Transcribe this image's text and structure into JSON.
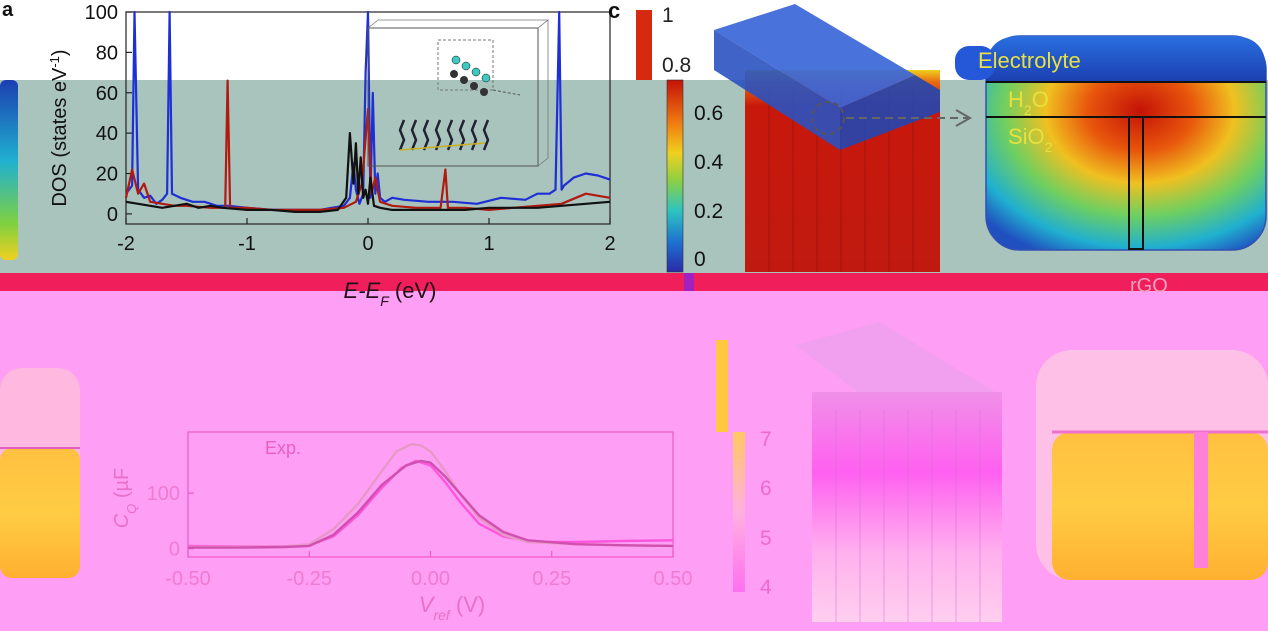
{
  "figure": {
    "panel_a": {
      "letter": "a",
      "x_label": "E-E",
      "x_label_sub": "F",
      "x_label_unit": " (eV)",
      "y_label_main": "DOS (states eV",
      "y_label_sup": "-1",
      "y_label_close": ")"
    },
    "panel_b": {
      "exp_label": "Exp.",
      "x_label": "V",
      "x_label_sub": "ref",
      "x_label_unit": " (V)",
      "y_label": "C",
      "y_label_sub": "Q",
      "y_label_unit": " (µF"
    },
    "panel_c": {
      "letter": "c",
      "colorbar_ticks": [
        "1",
        "0.8",
        "0.6",
        "0.4",
        "0.2",
        "0"
      ],
      "layer_electrolyte": "Electrolyte",
      "layer_h2o": "H",
      "layer_h2o_sub": "2",
      "layer_h2o_end": "O",
      "layer_sio2": "SiO",
      "layer_sio2_sub": "2",
      "material_label": "rGO"
    },
    "panel_d": {
      "colorbar_ticks": [
        "7",
        "6",
        "5",
        "4"
      ]
    }
  },
  "chart_data": [
    {
      "type": "line",
      "panel": "a",
      "xlabel": "E-E_F (eV)",
      "ylabel": "DOS (states eV^-1)",
      "xlim": [
        -2,
        2
      ],
      "ylim": [
        -5,
        100
      ],
      "x_ticks": [
        "-2",
        "-1",
        "0",
        "1",
        "2"
      ],
      "y_ticks": [
        "0",
        "20",
        "40",
        "60",
        "80",
        "100"
      ],
      "series": [
        {
          "color": "#1f2fd6",
          "x": [
            -2.0,
            -1.95,
            -1.93,
            -1.9,
            -1.85,
            -1.8,
            -1.75,
            -1.7,
            -1.66,
            -1.64,
            -1.62,
            -1.55,
            -1.45,
            -1.35,
            -1.25,
            -1.15,
            -1.0,
            -0.8,
            -0.6,
            -0.4,
            -0.3,
            -0.2,
            -0.15,
            -0.12,
            -0.1,
            -0.07,
            -0.04,
            -0.02,
            0.0,
            0.02,
            0.04,
            0.06,
            0.08,
            0.1,
            0.14,
            0.2,
            0.3,
            0.5,
            0.7,
            0.9,
            1.1,
            1.3,
            1.4,
            1.5,
            1.55,
            1.58,
            1.6,
            1.62,
            1.7,
            1.8,
            1.9,
            2.0
          ],
          "y": [
            10,
            14,
            100,
            12,
            8,
            9,
            5,
            7,
            10,
            100,
            10,
            8,
            6,
            6,
            4,
            4,
            3,
            2,
            2,
            2,
            3,
            4,
            8,
            25,
            12,
            5,
            10,
            70,
            100,
            8,
            60,
            10,
            20,
            8,
            6,
            8,
            7,
            6,
            6,
            5,
            8,
            7,
            10,
            10,
            12,
            100,
            12,
            14,
            18,
            20,
            19,
            17
          ]
        },
        {
          "color": "#b01a10",
          "x": [
            -2.0,
            -1.95,
            -1.9,
            -1.85,
            -1.8,
            -1.7,
            -1.6,
            -1.5,
            -1.3,
            -1.18,
            -1.16,
            -1.14,
            -1.0,
            -0.8,
            -0.6,
            -0.4,
            -0.2,
            -0.1,
            -0.05,
            0.0,
            0.03,
            0.06,
            0.1,
            0.2,
            0.4,
            0.6,
            0.64,
            0.66,
            0.68,
            0.8,
            1.0,
            1.2,
            1.4,
            1.6,
            1.8,
            2.0
          ],
          "y": [
            8,
            22,
            10,
            15,
            6,
            5,
            4,
            4,
            3,
            3,
            66,
            3,
            3,
            2,
            2,
            2,
            3,
            6,
            15,
            52,
            10,
            18,
            6,
            4,
            3,
            3,
            22,
            3,
            3,
            3,
            2,
            3,
            4,
            5,
            10,
            8
          ]
        },
        {
          "color": "#111111",
          "x": [
            -2.0,
            -1.9,
            -1.8,
            -1.7,
            -1.6,
            -1.5,
            -1.4,
            -1.3,
            -1.2,
            -1.0,
            -0.8,
            -0.6,
            -0.4,
            -0.25,
            -0.18,
            -0.15,
            -0.12,
            -0.1,
            -0.08,
            -0.06,
            -0.04,
            -0.02,
            0.0,
            0.02,
            0.05,
            0.1,
            0.2,
            0.4,
            0.6,
            0.8,
            1.0,
            1.2,
            1.4,
            1.6,
            1.8,
            2.0
          ],
          "y": [
            6,
            5,
            4,
            3,
            4,
            5,
            3,
            4,
            3,
            2,
            2,
            1,
            1,
            2,
            8,
            40,
            15,
            35,
            10,
            28,
            8,
            12,
            5,
            18,
            4,
            3,
            2,
            2,
            2,
            2,
            3,
            3,
            3,
            4,
            5,
            6
          ]
        }
      ]
    },
    {
      "type": "line",
      "panel": "b",
      "xlabel": "V_ref (V)",
      "ylabel": "C_Q (µF",
      "xlim": [
        -0.5,
        0.5
      ],
      "ylim": [
        -15,
        210
      ],
      "x_ticks": [
        "-0.50",
        "-0.25",
        "0.00",
        "0.25",
        "0.50"
      ],
      "y_ticks": [
        "0",
        "100"
      ],
      "series": [
        {
          "name": "Exp.",
          "color": "#ff55dd",
          "x": [
            -0.5,
            -0.4,
            -0.3,
            -0.25,
            -0.2,
            -0.15,
            -0.1,
            -0.06,
            -0.03,
            0.0,
            0.03,
            0.06,
            0.1,
            0.15,
            0.2,
            0.25,
            0.3,
            0.4,
            0.5
          ],
          "y": [
            5,
            4,
            4,
            6,
            22,
            60,
            110,
            145,
            158,
            150,
            120,
            85,
            45,
            22,
            14,
            12,
            12,
            14,
            15
          ]
        },
        {
          "color": "#e898c8",
          "x": [
            -0.5,
            -0.4,
            -0.3,
            -0.25,
            -0.2,
            -0.15,
            -0.1,
            -0.07,
            -0.04,
            -0.02,
            0.0,
            0.03,
            0.06,
            0.1,
            0.15,
            0.2,
            0.3,
            0.4,
            0.5
          ],
          "y": [
            3,
            3,
            4,
            8,
            35,
            80,
            140,
            175,
            188,
            186,
            175,
            140,
            100,
            55,
            25,
            12,
            8,
            6,
            5
          ]
        },
        {
          "color": "#d050b0",
          "x": [
            -0.5,
            -0.4,
            -0.3,
            -0.25,
            -0.2,
            -0.15,
            -0.1,
            -0.05,
            -0.02,
            0.0,
            0.03,
            0.07,
            0.1,
            0.15,
            0.2,
            0.3,
            0.4,
            0.5
          ],
          "y": [
            2,
            2,
            3,
            5,
            25,
            65,
            115,
            150,
            158,
            155,
            130,
            90,
            60,
            30,
            15,
            8,
            6,
            5
          ]
        }
      ]
    }
  ]
}
